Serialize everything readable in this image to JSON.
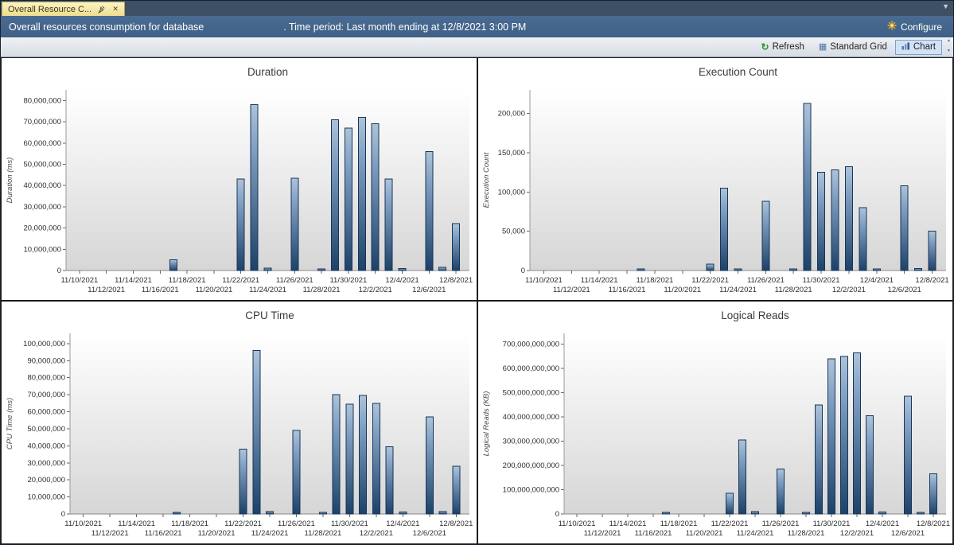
{
  "tab": {
    "title": "Overall Resource C..."
  },
  "header": {
    "prefix": "Overall resources consumption for database",
    "suffix": ". Time period: Last month ending at 12/8/2021 3:00 PM",
    "configure": "Configure"
  },
  "toolbar": {
    "refresh": "Refresh",
    "grid": "Standard Grid",
    "chart": "Chart"
  },
  "colors": {
    "header_bg": "#44658a",
    "bar_dark": "#1d4167",
    "bar_light": "#aec3d9",
    "bar_stroke": "#16365a",
    "tab_bg": "#f5e9a8"
  },
  "chart_data": [
    {
      "type": "bar",
      "title": "Duration",
      "ylabel": "Duration (ms)",
      "ylim": [
        0,
        85000000
      ],
      "ytick_max": 80000000,
      "ytick_step": 10000000,
      "x_domain": [
        "11/9/2021",
        "12/9/2021"
      ],
      "x_ticks": [
        "11/10/2021",
        "11/12/2021",
        "11/14/2021",
        "11/16/2021",
        "11/18/2021",
        "11/20/2021",
        "11/22/2021",
        "11/24/2021",
        "11/26/2021",
        "11/28/2021",
        "11/30/2021",
        "12/2/2021",
        "12/4/2021",
        "12/6/2021",
        "12/8/2021"
      ],
      "dates": [
        "11/17/2021",
        "11/22/2021",
        "11/23/2021",
        "11/24/2021",
        "11/26/2021",
        "11/28/2021",
        "11/29/2021",
        "11/30/2021",
        "12/1/2021",
        "12/2/2021",
        "12/3/2021",
        "12/4/2021",
        "12/6/2021",
        "12/7/2021",
        "12/8/2021"
      ],
      "values": [
        5000000,
        43000000,
        78000000,
        1100000,
        43500000,
        800000,
        71000000,
        67000000,
        72000000,
        69000000,
        43000000,
        1000000,
        56000000,
        1500000,
        22000000
      ]
    },
    {
      "type": "bar",
      "title": "Execution Count",
      "ylabel": "Execution Count",
      "ylim": [
        0,
        230000
      ],
      "ytick_max": 200000,
      "ytick_step": 50000,
      "x_domain": [
        "11/9/2021",
        "12/9/2021"
      ],
      "x_ticks": [
        "11/10/2021",
        "11/12/2021",
        "11/14/2021",
        "11/16/2021",
        "11/18/2021",
        "11/20/2021",
        "11/22/2021",
        "11/24/2021",
        "11/26/2021",
        "11/28/2021",
        "11/30/2021",
        "12/2/2021",
        "12/4/2021",
        "12/6/2021",
        "12/8/2021"
      ],
      "dates": [
        "11/17/2021",
        "11/22/2021",
        "11/23/2021",
        "11/24/2021",
        "11/26/2021",
        "11/28/2021",
        "11/29/2021",
        "11/30/2021",
        "12/1/2021",
        "12/2/2021",
        "12/3/2021",
        "12/4/2021",
        "12/6/2021",
        "12/7/2021",
        "12/8/2021"
      ],
      "values": [
        2000,
        8000,
        105000,
        2000,
        88000,
        1500,
        213000,
        125000,
        128000,
        132000,
        80000,
        2000,
        108000,
        2500,
        50000
      ]
    },
    {
      "type": "bar",
      "title": "CPU Time",
      "ylabel": "CPU Time (ms)",
      "ylim": [
        0,
        106000000
      ],
      "ytick_max": 100000000,
      "ytick_step": 10000000,
      "x_domain": [
        "11/9/2021",
        "12/9/2021"
      ],
      "x_ticks": [
        "11/10/2021",
        "11/12/2021",
        "11/14/2021",
        "11/16/2021",
        "11/18/2021",
        "11/20/2021",
        "11/22/2021",
        "11/24/2021",
        "11/26/2021",
        "11/28/2021",
        "11/30/2021",
        "12/2/2021",
        "12/4/2021",
        "12/6/2021",
        "12/8/2021"
      ],
      "dates": [
        "11/17/2021",
        "11/22/2021",
        "11/23/2021",
        "11/24/2021",
        "11/26/2021",
        "11/28/2021",
        "11/29/2021",
        "11/30/2021",
        "12/1/2021",
        "12/2/2021",
        "12/3/2021",
        "12/4/2021",
        "12/6/2021",
        "12/7/2021",
        "12/8/2021"
      ],
      "values": [
        1000000,
        38000000,
        96000000,
        1500000,
        49000000,
        900000,
        70000000,
        64500000,
        69500000,
        65000000,
        39500000,
        1200000,
        57000000,
        1500000,
        28000000
      ]
    },
    {
      "type": "bar",
      "title": "Logical Reads",
      "ylabel": "Logical Reads (KB)",
      "ylim": [
        0,
        745000000000
      ],
      "ytick_max": 700000000000,
      "ytick_step": 100000000000,
      "x_domain": [
        "11/9/2021",
        "12/9/2021"
      ],
      "x_ticks": [
        "11/10/2021",
        "11/12/2021",
        "11/14/2021",
        "11/16/2021",
        "11/18/2021",
        "11/20/2021",
        "11/22/2021",
        "11/24/2021",
        "11/26/2021",
        "11/28/2021",
        "11/30/2021",
        "12/2/2021",
        "12/4/2021",
        "12/6/2021",
        "12/8/2021"
      ],
      "dates": [
        "11/17/2021",
        "11/22/2021",
        "11/23/2021",
        "11/24/2021",
        "11/26/2021",
        "11/28/2021",
        "11/29/2021",
        "11/30/2021",
        "12/1/2021",
        "12/2/2021",
        "12/3/2021",
        "12/4/2021",
        "12/6/2021",
        "12/7/2021",
        "12/8/2021"
      ],
      "values": [
        1000000000,
        85000000000,
        305000000000,
        10000000000,
        185000000000,
        3000000000,
        450000000000,
        640000000000,
        650000000000,
        665000000000,
        405000000000,
        8000000000,
        485000000000,
        5000000000,
        165000000000
      ]
    }
  ]
}
